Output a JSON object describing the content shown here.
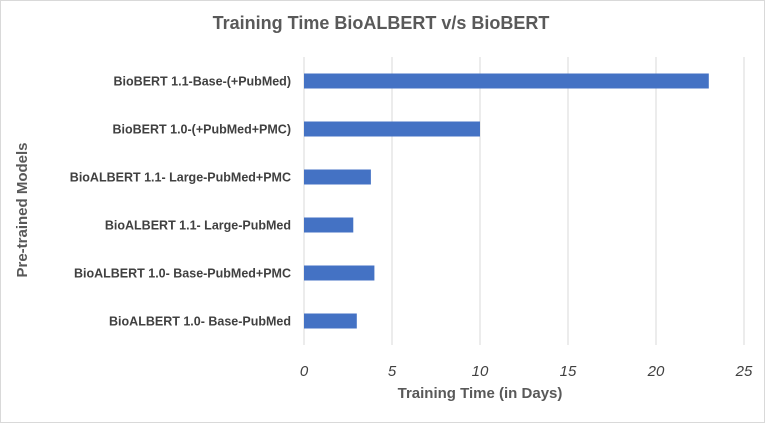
{
  "chart_data": {
    "type": "bar",
    "orientation": "horizontal",
    "title": "Training Time BioALBERT v/s BioBERT",
    "xlabel": "Training Time (in Days)",
    "ylabel": "Pre-trained Models",
    "categories": [
      "BioBERT 1.1-Base-(+PubMed)",
      "BioBERT 1.0-(+PubMed+PMC)",
      "BioALBERT 1.1- Large-PubMed+PMC",
      "BioALBERT 1.1- Large-PubMed",
      "BioALBERT 1.0- Base-PubMed+PMC",
      "BioALBERT 1.0- Base-PubMed"
    ],
    "values": [
      23,
      10,
      3.8,
      2.8,
      4,
      3
    ],
    "xlim": [
      0,
      25
    ],
    "xticks": [
      "0",
      "5",
      "10",
      "15",
      "20",
      "25"
    ],
    "grid": true,
    "bar_color": "#4472C4"
  }
}
